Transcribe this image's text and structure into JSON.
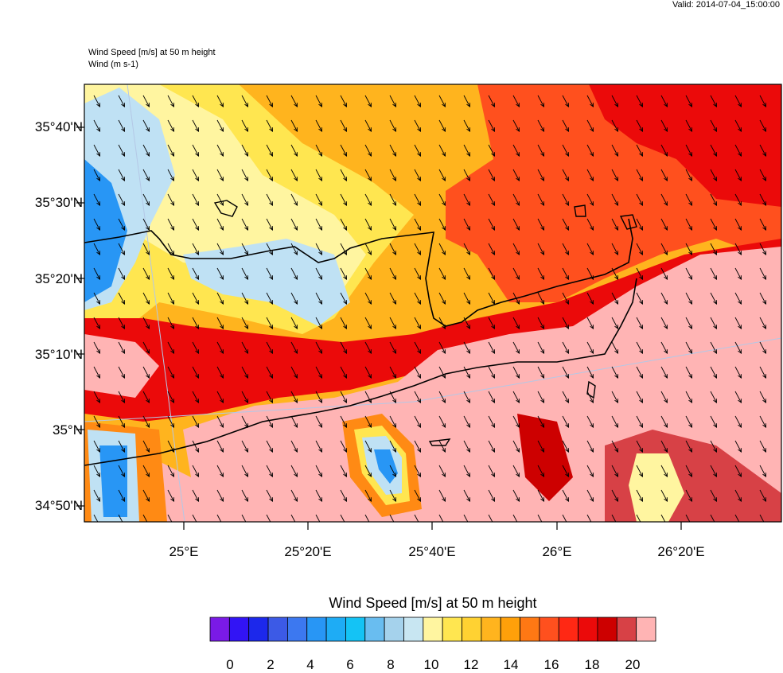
{
  "header": {
    "valid": "Valid: 2014-07-04_15:00:00",
    "title_line1": "Wind Speed [m/s] at 50 m height",
    "title_line2": "Wind   (m s-1)"
  },
  "axes": {
    "lat_labels": [
      "35°40'N",
      "35°30'N",
      "35°20'N",
      "35°10'N",
      "35°N",
      "34°50'N"
    ],
    "lon_labels": [
      "25°E",
      "25°20'E",
      "25°40'E",
      "26°E",
      "26°20'E"
    ]
  },
  "legend": {
    "title": "Wind Speed [m/s] at 50 m height",
    "tick_labels": [
      "0",
      "2",
      "4",
      "6",
      "8",
      "10",
      "12",
      "14",
      "16",
      "18",
      "20"
    ],
    "colors": [
      "#7a1ae6",
      "#3214f5",
      "#1c28eb",
      "#3c5ae6",
      "#3c78f0",
      "#2896f5",
      "#1eacf5",
      "#14c3f5",
      "#69bdf0",
      "#a5d2ec",
      "#c8e6f2",
      "#fff5a0",
      "#ffe650",
      "#ffd232",
      "#ffb41e",
      "#ffa00a",
      "#ff7814",
      "#ff501e",
      "#ff2814",
      "#eb0a0a",
      "#cd0000",
      "#d74146",
      "#ffb4b4"
    ]
  },
  "map": {
    "wind_direction": "north-northwest",
    "colors": {
      "blue": "#2896f5",
      "light_blue": "#bfe1f4",
      "cream": "#fff5a0",
      "yellow": "#ffe650",
      "orange": "#ffb41e",
      "dark_orange": "#ff8a14",
      "red_orange": "#ff501e",
      "red": "#eb0a0a",
      "dark_red": "#cd0000",
      "pink": "#ffb4b4",
      "rose": "#d74146"
    }
  }
}
